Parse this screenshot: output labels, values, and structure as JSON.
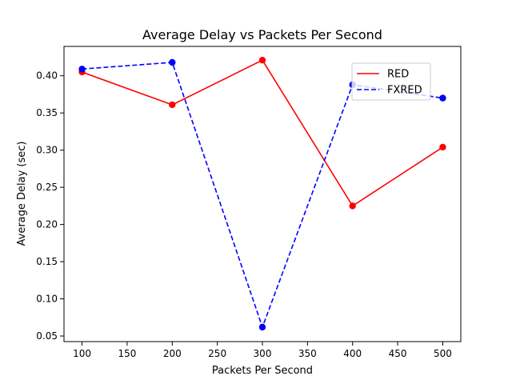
{
  "chart_data": {
    "type": "line",
    "title": "Average Delay vs Packets Per Second",
    "xlabel": "Packets Per Second",
    "ylabel": "Average Delay (sec)",
    "x": [
      100,
      200,
      300,
      400,
      500
    ],
    "xlim": [
      80,
      520
    ],
    "ylim": [
      0.0425,
      0.4395
    ],
    "xticks": [
      100,
      150,
      200,
      250,
      300,
      350,
      400,
      450,
      500
    ],
    "xtick_labels": [
      "100",
      "150",
      "200",
      "250",
      "300",
      "350",
      "400",
      "450",
      "500"
    ],
    "yticks": [
      0.05,
      0.1,
      0.15,
      0.2,
      0.25,
      0.3,
      0.35,
      0.4
    ],
    "ytick_labels": [
      "0.05",
      "0.10",
      "0.15",
      "0.20",
      "0.25",
      "0.30",
      "0.35",
      "0.40"
    ],
    "grid": false,
    "legend_position": "upper-right",
    "series": [
      {
        "name": "RED",
        "values": [
          0.405,
          0.361,
          0.421,
          0.225,
          0.304
        ],
        "color": "#ff0000",
        "style": "solid",
        "marker": "circle"
      },
      {
        "name": "FXRED",
        "values": [
          0.409,
          0.418,
          0.062,
          0.388,
          0.37
        ],
        "color": "#0000ff",
        "style": "dashed",
        "marker": "circle"
      }
    ]
  }
}
